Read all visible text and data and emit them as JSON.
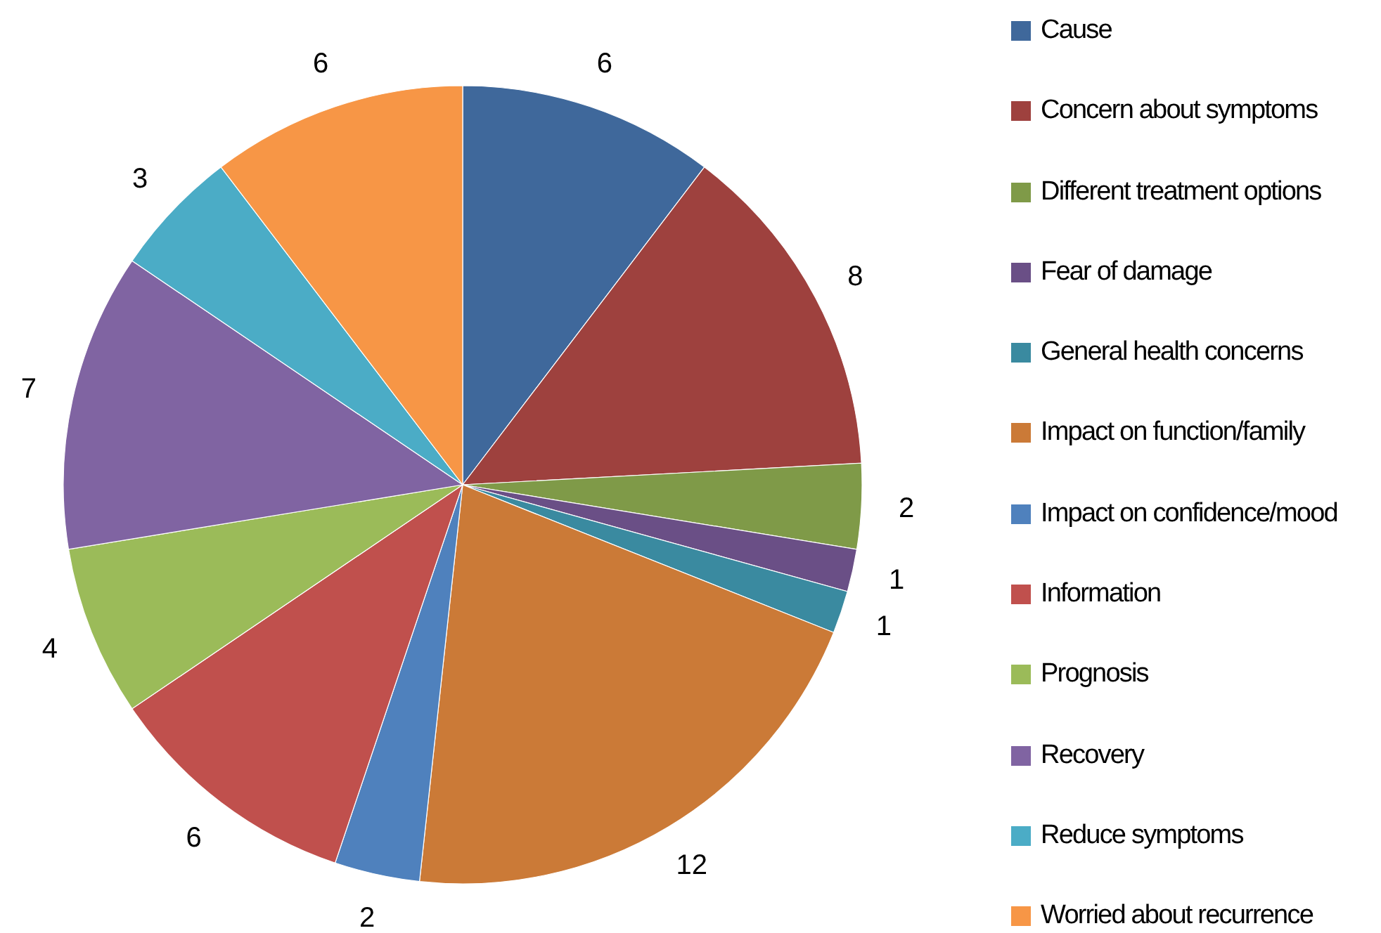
{
  "chart_data": {
    "type": "pie",
    "categories": [
      "Cause",
      "Concern about symptoms",
      "Different treatment options",
      "Fear of damage",
      "General health concerns",
      "Impact on function/family",
      "Impact on confidence/mood",
      "Information",
      "Prognosis",
      "Recovery",
      "Reduce symptoms",
      "Worried about recurrence"
    ],
    "values": [
      6,
      8,
      2,
      1,
      1,
      12,
      2,
      6,
      4,
      7,
      3,
      6
    ],
    "colors": [
      "#3f689b",
      "#9e413e",
      "#7f9a48",
      "#6a4f86",
      "#3a8aa0",
      "#cb7a37",
      "#4f81bd",
      "#c0504d",
      "#9bbb59",
      "#8064a2",
      "#4bacc6",
      "#f79646"
    ],
    "data_labels": true,
    "legend": "right"
  }
}
